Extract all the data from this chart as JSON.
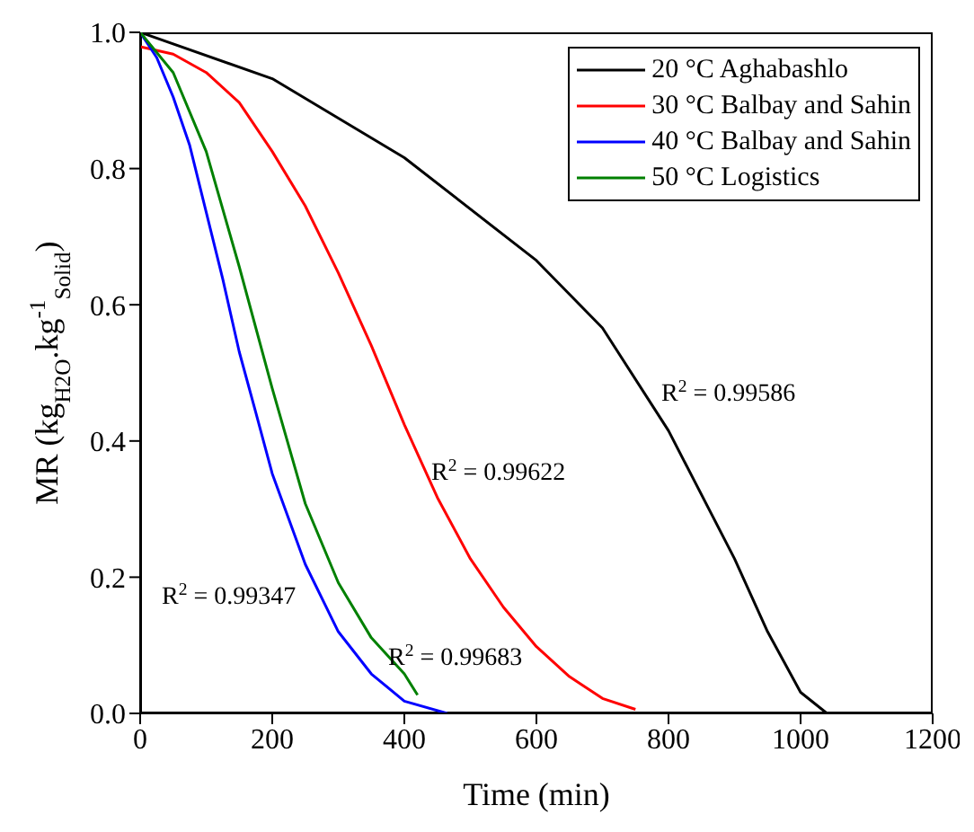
{
  "chart_data": {
    "type": "line",
    "xlabel": "Time (min)",
    "ylabel": "MR (kg$_{H2O}$.kg$^{-1}$$_{Solid}$)",
    "xlim": [
      0,
      1200
    ],
    "xticks": [
      0,
      200,
      400,
      600,
      800,
      1000,
      1200
    ],
    "ylim": [
      0,
      1
    ],
    "yticks": [
      {
        "value": 0,
        "label": "0.0"
      },
      0.2,
      0.4,
      0.6,
      0.8,
      {
        "value": 1,
        "label": "1.0"
      }
    ],
    "grid": false,
    "legend": "top right",
    "marker": "none",
    "line_style": "solid",
    "series": [
      {
        "name": "20 °C Aghabashlo",
        "color": "#000000",
        "x": [
          0,
          200,
          400,
          600,
          700,
          800,
          900,
          950,
          1000,
          1040,
          1083
        ],
        "values": [
          1,
          0.932,
          0.816,
          0.665,
          0.566,
          0.415,
          0.227,
          0.12,
          0.031,
          0,
          0
        ]
      },
      {
        "name": "30 °C Balbay and Sahin",
        "color": "#ff0000",
        "x": [
          0,
          50,
          100,
          150,
          200,
          250,
          300,
          350,
          400,
          450,
          500,
          550,
          600,
          650,
          700,
          750
        ],
        "values": [
          0.979,
          0.968,
          0.941,
          0.897,
          0.825,
          0.745,
          0.647,
          0.54,
          0.424,
          0.317,
          0.227,
          0.156,
          0.098,
          0.054,
          0.022,
          0.006
        ]
      },
      {
        "name": "40 °C Balbay and Sahin",
        "color": "#0000ff",
        "x": [
          0,
          25,
          50,
          75,
          100,
          125,
          150,
          175,
          200,
          250,
          300,
          350,
          400,
          465
        ],
        "values": [
          1,
          0.963,
          0.905,
          0.834,
          0.736,
          0.638,
          0.531,
          0.442,
          0.352,
          0.219,
          0.12,
          0.058,
          0.018,
          0
        ]
      },
      {
        "name": "50 °C Logistics",
        "color": "#008000",
        "x": [
          0,
          50,
          100,
          150,
          200,
          250,
          300,
          350,
          400,
          420
        ],
        "values": [
          1,
          0.941,
          0.825,
          0.656,
          0.477,
          0.308,
          0.192,
          0.111,
          0.058,
          0.027
        ]
      }
    ],
    "annotations": [
      "R$^{2}$ = 0.99586",
      "R$^{2}$ = 0.99622",
      "R$^{2}$ = 0.99347",
      "R$^{2}$ = 0.99683"
    ]
  }
}
